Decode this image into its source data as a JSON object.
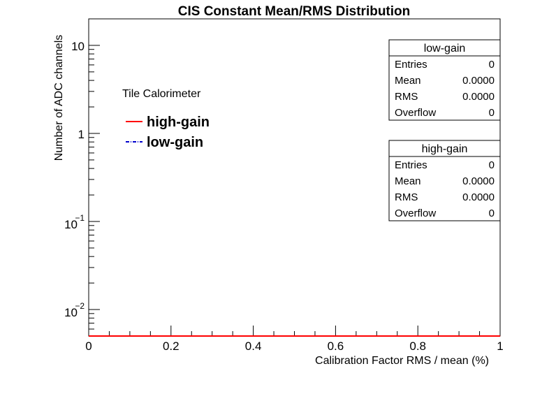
{
  "chart_data": {
    "type": "line",
    "title": "CIS Constant Mean/RMS Distribution",
    "xlabel": "Calibration Factor RMS / mean (%)",
    "ylabel": "Number of ADC channels",
    "xlim": [
      0,
      1
    ],
    "ylim": [
      0.005,
      20
    ],
    "yscale": "log",
    "grid": false,
    "x_ticks": [
      "0",
      "0.2",
      "0.4",
      "0.6",
      "0.8",
      "1"
    ],
    "y_ticks": [
      {
        "base": "10",
        "exp": "",
        "value": 10
      },
      {
        "base": "1",
        "exp": "",
        "value": 1
      },
      {
        "base": "10",
        "exp": "−1",
        "value": 0.1
      },
      {
        "base": "10",
        "exp": "−2",
        "value": 0.01
      }
    ],
    "series": [
      {
        "name": "high-gain",
        "color": "#ff0000",
        "style": "solid",
        "entries": 0
      },
      {
        "name": "low-gain",
        "color": "#0000cc",
        "style": "dash-dot",
        "entries": 0
      }
    ],
    "legend": {
      "placement": "top-left",
      "header": "Tile Calorimeter",
      "items": [
        "high-gain",
        "low-gain"
      ]
    },
    "stats_boxes": [
      {
        "title": "low-gain",
        "rows": [
          {
            "label": "Entries",
            "value": "0"
          },
          {
            "label": "Mean",
            "value": "0.0000"
          },
          {
            "label": "RMS",
            "value": "0.0000"
          },
          {
            "label": "Overflow",
            "value": "0"
          }
        ]
      },
      {
        "title": "high-gain",
        "rows": [
          {
            "label": "Entries",
            "value": "0"
          },
          {
            "label": "Mean",
            "value": "0.0000"
          },
          {
            "label": "RMS",
            "value": "0.0000"
          },
          {
            "label": "Overflow",
            "value": "0"
          }
        ]
      }
    ]
  }
}
